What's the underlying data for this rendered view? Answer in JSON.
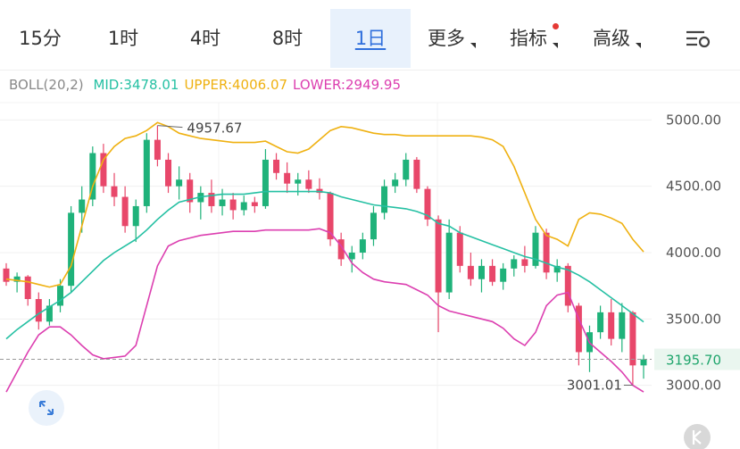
{
  "tabs": [
    "15分",
    "1时",
    "4时",
    "8时",
    "1日",
    "更多",
    "指标",
    "高级"
  ],
  "active_tab": 4,
  "chart_data": {
    "type": "candlestick",
    "indicator": "BOLL(20,2)",
    "up_color": "#1fb27a",
    "down_color": "#e8476a",
    "ylim": [
      2520,
      5130
    ],
    "yticks": [
      {
        "value": 3000,
        "label": "3000.00"
      },
      {
        "value": 3500,
        "label": "3500.00"
      },
      {
        "value": 4000,
        "label": "4000.00"
      },
      {
        "value": 4500,
        "label": "4500.00"
      },
      {
        "value": 5000,
        "label": "5000.00"
      }
    ],
    "grid": true,
    "open": [
      3880,
      3780,
      3820,
      3650,
      3480,
      3600,
      3750,
      4300,
      4400,
      4750,
      4500,
      4420,
      4200,
      4350,
      4850,
      4700,
      4500,
      4550,
      4380,
      4450,
      4350,
      4400,
      4320,
      4380,
      4350,
      4700,
      4600,
      4520,
      4550,
      4480,
      4450,
      4100,
      3950,
      4000,
      4100,
      4300,
      4500,
      4550,
      4700,
      4480,
      4250,
      3700,
      4150,
      3900,
      3800,
      3900,
      3780,
      3880,
      3950,
      3900,
      4150,
      3850,
      3900,
      3600,
      3250,
      3400,
      3550,
      3350,
      3550,
      3150
    ],
    "high": [
      3920,
      3850,
      3830,
      3700,
      3650,
      3800,
      4350,
      4500,
      4800,
      4820,
      4600,
      4500,
      4400,
      4900,
      4957.67,
      4750,
      4650,
      4600,
      4500,
      4550,
      4480,
      4450,
      4430,
      4420,
      4780,
      4750,
      4680,
      4600,
      4620,
      4560,
      4460,
      4150,
      4050,
      4150,
      4350,
      4550,
      4600,
      4750,
      4720,
      4500,
      4280,
      4250,
      4200,
      4000,
      3950,
      3950,
      3920,
      3980,
      4050,
      4200,
      4180,
      3950,
      3920,
      3620,
      3450,
      3600,
      3650,
      3620,
      3560,
      3230
    ],
    "low": [
      3750,
      3700,
      3600,
      3420,
      3450,
      3550,
      3700,
      4150,
      4350,
      4450,
      4350,
      4150,
      4080,
      4300,
      4650,
      4450,
      4400,
      4300,
      4250,
      4300,
      4280,
      4250,
      4280,
      4300,
      4330,
      4550,
      4450,
      4430,
      4450,
      4400,
      4050,
      3900,
      3850,
      3950,
      4050,
      4250,
      4450,
      4500,
      4450,
      4200,
      3400,
      3650,
      3850,
      3750,
      3700,
      3750,
      3720,
      3820,
      3850,
      3880,
      3800,
      3780,
      3550,
      3150,
      3100,
      3350,
      3300,
      3250,
      3001.01,
      3050
    ],
    "close": [
      3780,
      3820,
      3650,
      3480,
      3600,
      3750,
      4300,
      4400,
      4750,
      4500,
      4420,
      4200,
      4350,
      4850,
      4700,
      4500,
      4550,
      4380,
      4450,
      4350,
      4400,
      4320,
      4380,
      4350,
      4700,
      4600,
      4520,
      4550,
      4480,
      4450,
      4100,
      3950,
      4000,
      4100,
      4300,
      4500,
      4550,
      4700,
      4480,
      4250,
      3700,
      4150,
      3900,
      3800,
      3900,
      3780,
      3880,
      3950,
      3900,
      4150,
      3850,
      3900,
      3600,
      3250,
      3400,
      3550,
      3350,
      3550,
      3150,
      3195.7
    ],
    "series": [
      {
        "name": "MID:3478.01",
        "color": "#25c0a3",
        "values": [
          3350,
          3420,
          3480,
          3540,
          3590,
          3640,
          3700,
          3780,
          3860,
          3940,
          4000,
          4050,
          4100,
          4170,
          4250,
          4320,
          4380,
          4400,
          4420,
          4430,
          4440,
          4440,
          4440,
          4450,
          4460,
          4460,
          4460,
          4460,
          4460,
          4460,
          4450,
          4420,
          4400,
          4380,
          4360,
          4350,
          4340,
          4330,
          4310,
          4280,
          4220,
          4200,
          4150,
          4120,
          4090,
          4060,
          4030,
          4000,
          3970,
          3950,
          3920,
          3890,
          3870,
          3830,
          3780,
          3720,
          3660,
          3600,
          3540,
          3478.01
        ]
      },
      {
        "name": "UPPER:4006.07",
        "color": "#efb111",
        "values": [
          3800,
          3790,
          3780,
          3760,
          3740,
          3760,
          3900,
          4200,
          4500,
          4700,
          4800,
          4860,
          4880,
          4920,
          4980,
          4950,
          4900,
          4880,
          4860,
          4850,
          4840,
          4830,
          4830,
          4830,
          4840,
          4800,
          4760,
          4750,
          4780,
          4850,
          4920,
          4950,
          4940,
          4920,
          4900,
          4890,
          4890,
          4880,
          4880,
          4880,
          4880,
          4880,
          4880,
          4880,
          4870,
          4850,
          4800,
          4650,
          4450,
          4250,
          4130,
          4100,
          4050,
          4250,
          4300,
          4290,
          4260,
          4220,
          4100,
          4006.07
        ]
      },
      {
        "name": "LOWER:2949.95",
        "color": "#dc3fb0",
        "values": [
          2950,
          3100,
          3250,
          3380,
          3440,
          3440,
          3380,
          3300,
          3230,
          3200,
          3210,
          3220,
          3300,
          3600,
          3900,
          4050,
          4090,
          4110,
          4130,
          4140,
          4150,
          4160,
          4160,
          4160,
          4170,
          4170,
          4170,
          4170,
          4170,
          4180,
          4150,
          4050,
          3920,
          3850,
          3800,
          3780,
          3770,
          3760,
          3720,
          3680,
          3600,
          3560,
          3540,
          3520,
          3500,
          3480,
          3430,
          3350,
          3300,
          3400,
          3600,
          3680,
          3700,
          3500,
          3320,
          3250,
          3180,
          3100,
          3000,
          2949.95
        ]
      }
    ],
    "last_price": {
      "value": 3195.7,
      "label": "3195.70"
    },
    "max_label": 4957.67,
    "min_label": 3001.01
  }
}
